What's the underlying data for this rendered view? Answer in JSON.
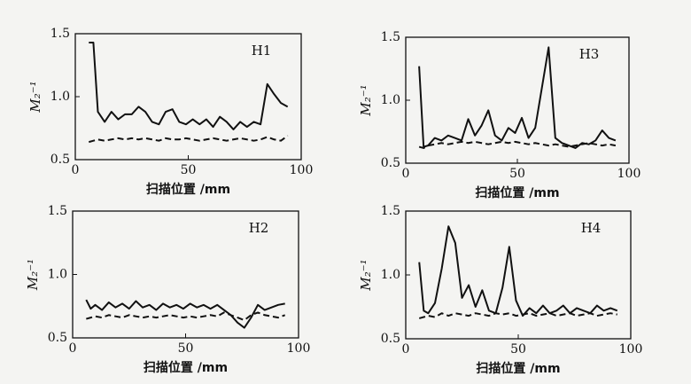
{
  "chart_data": [
    {
      "type": "line",
      "title": "H1",
      "xlabel": "扫描位置 /mm",
      "ylabel": "M₂⁻¹",
      "xlim": [
        0,
        100
      ],
      "xticks": [
        0,
        50,
        100
      ],
      "ylim": [
        0.5,
        1.5
      ],
      "yticks": [
        0.5,
        {
          "value": 1,
          "label": "1.0"
        },
        1.5
      ],
      "x": [
        6,
        8,
        10,
        13,
        16,
        19,
        22,
        25,
        28,
        31,
        34,
        37,
        40,
        43,
        46,
        49,
        52,
        55,
        58,
        61,
        64,
        67,
        70,
        73,
        76,
        79,
        82,
        85,
        88,
        91,
        94
      ],
      "series": [
        {
          "color": "#111111",
          "style": "solid",
          "values": [
            1.43,
            1.43,
            0.88,
            0.8,
            0.88,
            0.82,
            0.86,
            0.86,
            0.92,
            0.88,
            0.8,
            0.78,
            0.88,
            0.9,
            0.8,
            0.78,
            0.82,
            0.78,
            0.82,
            0.76,
            0.84,
            0.8,
            0.74,
            0.8,
            0.76,
            0.8,
            0.78,
            1.1,
            1.02,
            0.95,
            0.92
          ]
        },
        {
          "color": "#111111",
          "style": "dashed",
          "values": [
            0.64,
            0.65,
            0.66,
            0.65,
            0.66,
            0.67,
            0.66,
            0.67,
            0.66,
            0.67,
            0.66,
            0.65,
            0.67,
            0.66,
            0.66,
            0.67,
            0.66,
            0.65,
            0.66,
            0.67,
            0.66,
            0.65,
            0.66,
            0.67,
            0.66,
            0.65,
            0.66,
            0.68,
            0.66,
            0.65,
            0.69
          ]
        }
      ]
    },
    {
      "type": "line",
      "title": "H2",
      "xlabel": "扫描位置 /mm",
      "ylabel": "M₂⁻¹",
      "xlim": [
        0,
        100
      ],
      "xticks": [
        0,
        50,
        100
      ],
      "ylim": [
        0.5,
        1.5
      ],
      "yticks": [
        0.5,
        {
          "value": 1,
          "label": "1.0"
        },
        1.5
      ],
      "x": [
        6,
        8,
        10,
        13,
        16,
        19,
        22,
        25,
        28,
        31,
        34,
        37,
        40,
        43,
        46,
        49,
        52,
        55,
        58,
        61,
        64,
        67,
        70,
        73,
        76,
        79,
        82,
        85,
        88,
        91,
        94
      ],
      "series": [
        {
          "color": "#111111",
          "style": "solid",
          "values": [
            0.8,
            0.73,
            0.76,
            0.72,
            0.78,
            0.74,
            0.77,
            0.73,
            0.79,
            0.74,
            0.76,
            0.72,
            0.77,
            0.74,
            0.76,
            0.73,
            0.77,
            0.74,
            0.76,
            0.73,
            0.76,
            0.72,
            0.68,
            0.62,
            0.58,
            0.66,
            0.76,
            0.72,
            0.74,
            0.76,
            0.77
          ]
        },
        {
          "color": "#111111",
          "style": "dashed",
          "values": [
            0.65,
            0.66,
            0.67,
            0.66,
            0.68,
            0.67,
            0.66,
            0.68,
            0.67,
            0.66,
            0.67,
            0.66,
            0.67,
            0.68,
            0.67,
            0.66,
            0.67,
            0.66,
            0.67,
            0.68,
            0.67,
            0.7,
            0.68,
            0.66,
            0.64,
            0.68,
            0.7,
            0.68,
            0.67,
            0.66,
            0.68
          ]
        }
      ]
    },
    {
      "type": "line",
      "title": "H3",
      "xlabel": "扫描位置 /mm",
      "ylabel": "M₂⁻¹",
      "xlim": [
        0,
        100
      ],
      "xticks": [
        0,
        50,
        100
      ],
      "ylim": [
        0.5,
        1.5
      ],
      "yticks": [
        0.5,
        {
          "value": 1,
          "label": "1.0"
        },
        1.5
      ],
      "x": [
        6,
        8,
        10,
        13,
        16,
        19,
        22,
        25,
        28,
        31,
        34,
        37,
        40,
        43,
        46,
        49,
        52,
        55,
        58,
        61,
        64,
        67,
        70,
        73,
        76,
        79,
        82,
        85,
        88,
        91,
        94
      ],
      "series": [
        {
          "color": "#111111",
          "style": "solid",
          "values": [
            1.27,
            0.63,
            0.64,
            0.7,
            0.68,
            0.72,
            0.7,
            0.68,
            0.85,
            0.72,
            0.8,
            0.92,
            0.72,
            0.68,
            0.78,
            0.74,
            0.86,
            0.7,
            0.78,
            1.1,
            1.42,
            0.7,
            0.66,
            0.64,
            0.62,
            0.66,
            0.65,
            0.68,
            0.76,
            0.7,
            0.68
          ]
        },
        {
          "color": "#111111",
          "style": "dashed",
          "values": [
            0.63,
            0.62,
            0.64,
            0.65,
            0.66,
            0.65,
            0.66,
            0.67,
            0.66,
            0.67,
            0.66,
            0.65,
            0.66,
            0.67,
            0.66,
            0.67,
            0.66,
            0.65,
            0.66,
            0.65,
            0.64,
            0.65,
            0.64,
            0.63,
            0.64,
            0.65,
            0.66,
            0.65,
            0.64,
            0.65,
            0.64
          ]
        }
      ]
    },
    {
      "type": "line",
      "title": "H4",
      "xlabel": "扫描位置 /mm",
      "ylabel": "M₂⁻¹",
      "xlim": [
        0,
        100
      ],
      "xticks": [
        0,
        50,
        100
      ],
      "ylim": [
        0.5,
        1.5
      ],
      "yticks": [
        0.5,
        {
          "value": 1,
          "label": "1.0"
        },
        1.5
      ],
      "x": [
        6,
        8,
        10,
        13,
        16,
        19,
        22,
        25,
        28,
        31,
        34,
        37,
        40,
        43,
        46,
        49,
        52,
        55,
        58,
        61,
        64,
        67,
        70,
        73,
        76,
        79,
        82,
        85,
        88,
        91,
        94
      ],
      "series": [
        {
          "color": "#111111",
          "style": "solid",
          "values": [
            1.1,
            0.72,
            0.7,
            0.78,
            1.05,
            1.38,
            1.25,
            0.82,
            0.92,
            0.75,
            0.88,
            0.72,
            0.7,
            0.9,
            1.22,
            0.8,
            0.68,
            0.74,
            0.7,
            0.76,
            0.7,
            0.72,
            0.76,
            0.7,
            0.74,
            0.72,
            0.7,
            0.76,
            0.72,
            0.74,
            0.72
          ]
        },
        {
          "color": "#111111",
          "style": "dashed",
          "values": [
            0.66,
            0.67,
            0.68,
            0.67,
            0.7,
            0.68,
            0.7,
            0.69,
            0.68,
            0.7,
            0.69,
            0.68,
            0.7,
            0.69,
            0.7,
            0.68,
            0.69,
            0.7,
            0.68,
            0.69,
            0.7,
            0.68,
            0.69,
            0.7,
            0.68,
            0.69,
            0.7,
            0.68,
            0.69,
            0.7,
            0.69
          ]
        }
      ]
    }
  ]
}
